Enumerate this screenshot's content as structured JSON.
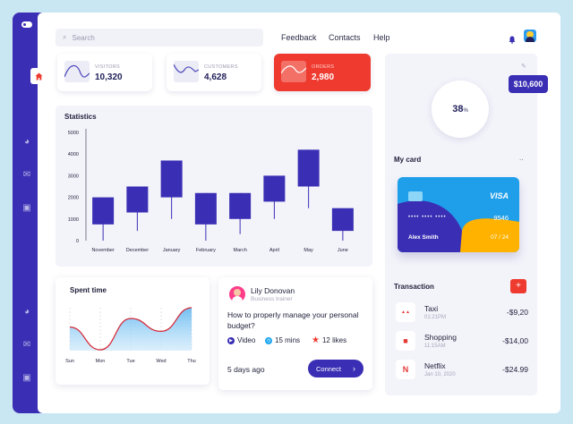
{
  "search": {
    "placeholder": "Search"
  },
  "nav": {
    "feedback": "Feedback",
    "contacts": "Contacts",
    "help": "Help"
  },
  "stats": [
    {
      "label": "VISITORS",
      "value": "10,320"
    },
    {
      "label": "CUSTOMERS",
      "value": "4,628"
    },
    {
      "label": "ORDERS",
      "value": "2,980"
    }
  ],
  "balance": "$10,600",
  "progress": {
    "value": 38,
    "suffix": "%"
  },
  "statistics": {
    "title": "Statistics",
    "chart_data": {
      "type": "candlestick",
      "categories": [
        "November",
        "December",
        "January",
        "February",
        "March",
        "April",
        "May",
        "June"
      ],
      "series": [
        {
          "low": 0,
          "open": 750,
          "close": 2000,
          "high": 2000
        },
        {
          "low": 450,
          "open": 1300,
          "close": 2500,
          "high": 2500
        },
        {
          "low": 1000,
          "open": 2000,
          "close": 3700,
          "high": 3700
        },
        {
          "low": 0,
          "open": 750,
          "close": 2200,
          "high": 2200
        },
        {
          "low": 300,
          "open": 1000,
          "close": 2200,
          "high": 2200
        },
        {
          "low": 1000,
          "open": 1800,
          "close": 3000,
          "high": 3000
        },
        {
          "low": 1500,
          "open": 2500,
          "close": 4200,
          "high": 4200
        },
        {
          "low": 0,
          "open": 450,
          "close": 1500,
          "high": 1500
        }
      ],
      "yticks": [
        0,
        1000,
        2000,
        3000,
        4000,
        5000
      ],
      "ylim": [
        0,
        5000
      ]
    }
  },
  "spent_time": {
    "title": "Spent time",
    "chart_data": {
      "type": "area",
      "categories": [
        "Sun",
        "Mon",
        "Tue",
        "Wed",
        "Thu"
      ],
      "values": [
        0.55,
        0.02,
        0.75,
        0.45,
        1.0
      ]
    }
  },
  "webinar": {
    "name": "Lily Donovan",
    "role": "Business trainer",
    "question": "How to properly manage your personal budget?",
    "meta": {
      "video": "Video",
      "duration": "15 mins",
      "likes": "12 likes"
    },
    "posted": "5 days ago",
    "connect": "Connect"
  },
  "card": {
    "title": "My card",
    "more": "..",
    "brand": "VISA",
    "number_mask": "•••• •••• ••••",
    "last4": "9546",
    "holder": "Alex Smith",
    "expiry": "07 / 24"
  },
  "transactions": {
    "title": "Transaction",
    "add": "+",
    "items": [
      {
        "name": "Taxi",
        "date": "01:21PM",
        "amount": "-$9,20",
        "icon": "taxi-icon",
        "glyph": "▲▲"
      },
      {
        "name": "Shopping",
        "date": "11:15AM",
        "amount": "-$14,00",
        "icon": "shopping-bag-icon",
        "glyph": "■"
      },
      {
        "name": "Netflix",
        "date": "Jan 10, 2020",
        "amount": "-$24.99",
        "icon": "netflix-icon",
        "glyph": "N"
      }
    ]
  }
}
